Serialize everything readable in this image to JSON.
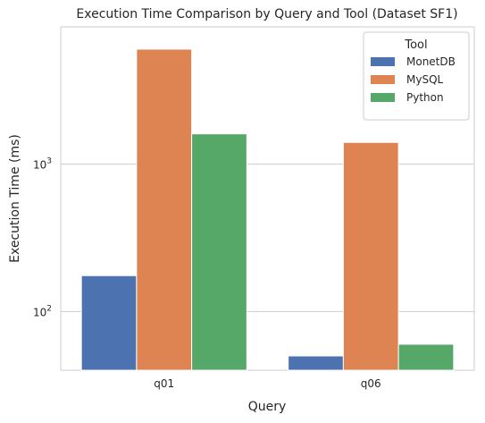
{
  "chart_data": {
    "type": "bar",
    "title": "Execution Time Comparison by Query and Tool (Dataset SF1)",
    "xlabel": "Query",
    "ylabel": "Execution Time (ms)",
    "yscale": "log",
    "ylim": [
      40,
      8500
    ],
    "grid": true,
    "categories": [
      "q01",
      "q06"
    ],
    "y_ticks": [
      {
        "value": 100,
        "base": "10",
        "exp": "2"
      },
      {
        "value": 1000,
        "base": "10",
        "exp": "3"
      }
    ],
    "legend": {
      "title": "Tool",
      "placement": "top-right"
    },
    "series": [
      {
        "name": "MonetDB",
        "color": "#4c72b0",
        "values": [
          175,
          50
        ]
      },
      {
        "name": "MySQL",
        "color": "#dd8452",
        "values": [
          6000,
          1400
        ]
      },
      {
        "name": "Python",
        "color": "#55a868",
        "values": [
          1600,
          60
        ]
      }
    ]
  }
}
